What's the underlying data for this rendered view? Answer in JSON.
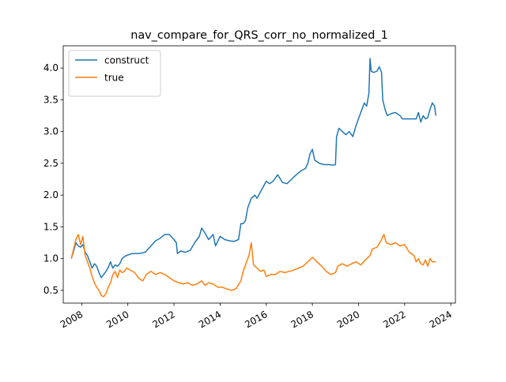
{
  "chart_data": {
    "type": "line",
    "title": "nav_compare_for_QRS_corr_no_normalized_1",
    "xlabel": "",
    "ylabel": "",
    "xlim": [
      2007.2,
      2024.2
    ],
    "ylim": [
      0.3,
      4.35
    ],
    "xticks": [
      {
        "value": 2008,
        "label": "2008"
      },
      {
        "value": 2010,
        "label": "2010"
      },
      {
        "value": 2012,
        "label": "2012"
      },
      {
        "value": 2014,
        "label": "2014"
      },
      {
        "value": 2016,
        "label": "2016"
      },
      {
        "value": 2018,
        "label": "2018"
      },
      {
        "value": 2020,
        "label": "2020"
      },
      {
        "value": 2022,
        "label": "2022"
      },
      {
        "value": 2024,
        "label": "2024"
      }
    ],
    "yticks": [
      {
        "value": 0.5,
        "label": "0.5"
      },
      {
        "value": 1.0,
        "label": "1.0"
      },
      {
        "value": 1.5,
        "label": "1.5"
      },
      {
        "value": 2.0,
        "label": "2.0"
      },
      {
        "value": 2.5,
        "label": "2.5"
      },
      {
        "value": 3.0,
        "label": "3.0"
      },
      {
        "value": 3.5,
        "label": "3.5"
      },
      {
        "value": 4.0,
        "label": "4.0"
      }
    ],
    "grid": false,
    "legend_position": "top-left",
    "series": [
      {
        "name": "construct",
        "color": "#1f77b4",
        "points": [
          [
            2007.55,
            1.0
          ],
          [
            2007.65,
            1.12
          ],
          [
            2007.75,
            1.25
          ],
          [
            2007.85,
            1.2
          ],
          [
            2007.95,
            1.18
          ],
          [
            2008.05,
            1.22
          ],
          [
            2008.15,
            1.1
          ],
          [
            2008.25,
            1.05
          ],
          [
            2008.35,
            0.95
          ],
          [
            2008.45,
            0.85
          ],
          [
            2008.55,
            0.92
          ],
          [
            2008.65,
            0.88
          ],
          [
            2008.75,
            0.78
          ],
          [
            2008.85,
            0.7
          ],
          [
            2008.95,
            0.75
          ],
          [
            2009.05,
            0.8
          ],
          [
            2009.15,
            0.86
          ],
          [
            2009.25,
            0.95
          ],
          [
            2009.35,
            0.85
          ],
          [
            2009.45,
            0.9
          ],
          [
            2009.55,
            0.88
          ],
          [
            2009.65,
            0.92
          ],
          [
            2009.75,
            1.0
          ],
          [
            2009.85,
            1.03
          ],
          [
            2009.95,
            1.05
          ],
          [
            2010.2,
            1.08
          ],
          [
            2010.5,
            1.08
          ],
          [
            2010.75,
            1.1
          ],
          [
            2011.0,
            1.2
          ],
          [
            2011.2,
            1.28
          ],
          [
            2011.4,
            1.32
          ],
          [
            2011.6,
            1.38
          ],
          [
            2011.8,
            1.38
          ],
          [
            2012.0,
            1.3
          ],
          [
            2012.1,
            1.25
          ],
          [
            2012.15,
            1.08
          ],
          [
            2012.3,
            1.12
          ],
          [
            2012.5,
            1.1
          ],
          [
            2012.7,
            1.13
          ],
          [
            2012.9,
            1.25
          ],
          [
            2013.1,
            1.35
          ],
          [
            2013.2,
            1.48
          ],
          [
            2013.35,
            1.4
          ],
          [
            2013.5,
            1.3
          ],
          [
            2013.7,
            1.38
          ],
          [
            2013.8,
            1.2
          ],
          [
            2014.0,
            1.35
          ],
          [
            2014.2,
            1.3
          ],
          [
            2014.4,
            1.28
          ],
          [
            2014.6,
            1.27
          ],
          [
            2014.8,
            1.3
          ],
          [
            2014.9,
            1.55
          ],
          [
            2015.0,
            1.55
          ],
          [
            2015.1,
            1.6
          ],
          [
            2015.2,
            1.8
          ],
          [
            2015.35,
            1.95
          ],
          [
            2015.5,
            2.0
          ],
          [
            2015.6,
            1.95
          ],
          [
            2015.75,
            2.05
          ],
          [
            2015.9,
            2.15
          ],
          [
            2016.0,
            2.22
          ],
          [
            2016.15,
            2.18
          ],
          [
            2016.3,
            2.22
          ],
          [
            2016.5,
            2.32
          ],
          [
            2016.7,
            2.2
          ],
          [
            2016.9,
            2.18
          ],
          [
            2017.1,
            2.25
          ],
          [
            2017.3,
            2.32
          ],
          [
            2017.5,
            2.38
          ],
          [
            2017.7,
            2.42
          ],
          [
            2017.8,
            2.5
          ],
          [
            2017.9,
            2.65
          ],
          [
            2018.0,
            2.72
          ],
          [
            2018.1,
            2.55
          ],
          [
            2018.3,
            2.5
          ],
          [
            2018.5,
            2.48
          ],
          [
            2018.7,
            2.48
          ],
          [
            2018.9,
            2.47
          ],
          [
            2019.0,
            2.48
          ],
          [
            2019.05,
            2.92
          ],
          [
            2019.15,
            3.05
          ],
          [
            2019.3,
            3.0
          ],
          [
            2019.45,
            2.95
          ],
          [
            2019.6,
            3.0
          ],
          [
            2019.75,
            2.92
          ],
          [
            2019.9,
            3.1
          ],
          [
            2020.05,
            3.25
          ],
          [
            2020.15,
            3.35
          ],
          [
            2020.25,
            3.45
          ],
          [
            2020.35,
            3.4
          ],
          [
            2020.45,
            3.6
          ],
          [
            2020.5,
            4.15
          ],
          [
            2020.55,
            3.95
          ],
          [
            2020.65,
            3.93
          ],
          [
            2020.8,
            3.95
          ],
          [
            2020.9,
            4.02
          ],
          [
            2021.0,
            3.93
          ],
          [
            2021.05,
            3.5
          ],
          [
            2021.15,
            3.35
          ],
          [
            2021.25,
            3.25
          ],
          [
            2021.4,
            3.28
          ],
          [
            2021.6,
            3.3
          ],
          [
            2021.8,
            3.25
          ],
          [
            2021.9,
            3.2
          ],
          [
            2022.1,
            3.2
          ],
          [
            2022.3,
            3.2
          ],
          [
            2022.5,
            3.2
          ],
          [
            2022.6,
            3.3
          ],
          [
            2022.7,
            3.15
          ],
          [
            2022.8,
            3.25
          ],
          [
            2022.9,
            3.2
          ],
          [
            2023.0,
            3.22
          ],
          [
            2023.1,
            3.35
          ],
          [
            2023.2,
            3.45
          ],
          [
            2023.3,
            3.4
          ],
          [
            2023.35,
            3.25
          ]
        ]
      },
      {
        "name": "true",
        "color": "#ff7f0e",
        "points": [
          [
            2007.55,
            1.0
          ],
          [
            2007.65,
            1.15
          ],
          [
            2007.75,
            1.3
          ],
          [
            2007.85,
            1.38
          ],
          [
            2007.95,
            1.22
          ],
          [
            2008.05,
            1.35
          ],
          [
            2008.15,
            1.05
          ],
          [
            2008.25,
            0.95
          ],
          [
            2008.35,
            0.85
          ],
          [
            2008.45,
            0.72
          ],
          [
            2008.55,
            0.62
          ],
          [
            2008.65,
            0.55
          ],
          [
            2008.75,
            0.5
          ],
          [
            2008.85,
            0.42
          ],
          [
            2008.95,
            0.4
          ],
          [
            2009.05,
            0.45
          ],
          [
            2009.15,
            0.55
          ],
          [
            2009.25,
            0.62
          ],
          [
            2009.35,
            0.75
          ],
          [
            2009.45,
            0.8
          ],
          [
            2009.55,
            0.7
          ],
          [
            2009.65,
            0.82
          ],
          [
            2009.75,
            0.78
          ],
          [
            2009.85,
            0.8
          ],
          [
            2009.95,
            0.85
          ],
          [
            2010.1,
            0.82
          ],
          [
            2010.3,
            0.78
          ],
          [
            2010.5,
            0.68
          ],
          [
            2010.65,
            0.65
          ],
          [
            2010.8,
            0.75
          ],
          [
            2011.0,
            0.8
          ],
          [
            2011.2,
            0.75
          ],
          [
            2011.4,
            0.78
          ],
          [
            2011.6,
            0.75
          ],
          [
            2011.8,
            0.7
          ],
          [
            2012.0,
            0.65
          ],
          [
            2012.2,
            0.62
          ],
          [
            2012.4,
            0.6
          ],
          [
            2012.6,
            0.62
          ],
          [
            2012.8,
            0.58
          ],
          [
            2013.0,
            0.6
          ],
          [
            2013.2,
            0.65
          ],
          [
            2013.35,
            0.58
          ],
          [
            2013.5,
            0.62
          ],
          [
            2013.7,
            0.6
          ],
          [
            2013.9,
            0.55
          ],
          [
            2014.1,
            0.55
          ],
          [
            2014.3,
            0.52
          ],
          [
            2014.5,
            0.5
          ],
          [
            2014.7,
            0.53
          ],
          [
            2014.9,
            0.65
          ],
          [
            2015.0,
            0.8
          ],
          [
            2015.1,
            0.9
          ],
          [
            2015.25,
            1.05
          ],
          [
            2015.35,
            1.25
          ],
          [
            2015.45,
            0.9
          ],
          [
            2015.6,
            0.85
          ],
          [
            2015.75,
            0.8
          ],
          [
            2015.9,
            0.82
          ],
          [
            2016.0,
            0.72
          ],
          [
            2016.2,
            0.75
          ],
          [
            2016.4,
            0.75
          ],
          [
            2016.6,
            0.8
          ],
          [
            2016.8,
            0.78
          ],
          [
            2017.0,
            0.8
          ],
          [
            2017.2,
            0.82
          ],
          [
            2017.4,
            0.85
          ],
          [
            2017.6,
            0.88
          ],
          [
            2017.8,
            0.95
          ],
          [
            2018.0,
            1.02
          ],
          [
            2018.2,
            0.95
          ],
          [
            2018.4,
            0.88
          ],
          [
            2018.6,
            0.8
          ],
          [
            2018.8,
            0.75
          ],
          [
            2019.0,
            0.78
          ],
          [
            2019.1,
            0.88
          ],
          [
            2019.3,
            0.92
          ],
          [
            2019.5,
            0.88
          ],
          [
            2019.7,
            0.92
          ],
          [
            2019.9,
            0.95
          ],
          [
            2020.1,
            0.9
          ],
          [
            2020.3,
            0.98
          ],
          [
            2020.5,
            1.05
          ],
          [
            2020.6,
            1.15
          ],
          [
            2020.8,
            1.18
          ],
          [
            2021.0,
            1.3
          ],
          [
            2021.1,
            1.38
          ],
          [
            2021.2,
            1.25
          ],
          [
            2021.4,
            1.22
          ],
          [
            2021.6,
            1.25
          ],
          [
            2021.8,
            1.2
          ],
          [
            2022.0,
            1.22
          ],
          [
            2022.2,
            1.1
          ],
          [
            2022.4,
            1.05
          ],
          [
            2022.5,
            0.95
          ],
          [
            2022.6,
            1.0
          ],
          [
            2022.7,
            0.92
          ],
          [
            2022.8,
            0.9
          ],
          [
            2022.9,
            0.98
          ],
          [
            2023.0,
            0.88
          ],
          [
            2023.1,
            1.0
          ],
          [
            2023.2,
            0.95
          ],
          [
            2023.35,
            0.95
          ]
        ]
      }
    ]
  }
}
